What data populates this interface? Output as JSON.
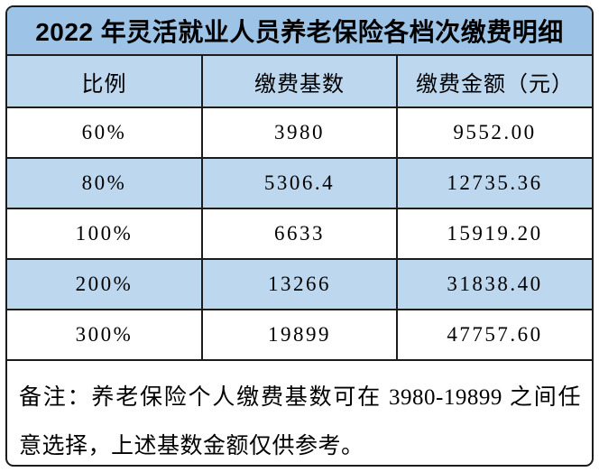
{
  "title": "2022 年灵活就业人员养老保险各档次缴费明细",
  "table": {
    "columns": [
      "比例",
      "缴费基数",
      "缴费金额（元）"
    ],
    "rows": [
      {
        "ratio": "60%",
        "base": "3980",
        "amount": "9552.00"
      },
      {
        "ratio": "80%",
        "base": "5306.4",
        "amount": "12735.36"
      },
      {
        "ratio": "100%",
        "base": "6633",
        "amount": "15919.20"
      },
      {
        "ratio": "200%",
        "base": "13266",
        "amount": "31838.40"
      },
      {
        "ratio": "300%",
        "base": "19899",
        "amount": "47757.60"
      }
    ]
  },
  "note": "备注：养老保险个人缴费基数可在 3980-19899 之间任意选择，上述基数金额仅供参考。",
  "colors": {
    "title_bar": "#9dc3e6",
    "band_row": "#bdd7ee",
    "border": "#1c1c1c",
    "text": "#000000",
    "background": "#ffffff"
  },
  "chart_data": {
    "type": "table",
    "title": "2022 年灵活就业人员养老保险各档次缴费明细",
    "columns": [
      "比例",
      "缴费基数",
      "缴费金额（元）"
    ],
    "rows": [
      [
        "60%",
        3980,
        9552.0
      ],
      [
        "80%",
        5306.4,
        12735.36
      ],
      [
        "100%",
        6633,
        15919.2
      ],
      [
        "200%",
        13266,
        31838.4
      ],
      [
        "300%",
        19899,
        47757.6
      ]
    ],
    "note": "备注：养老保险个人缴费基数可在 3980-19899 之间任意选择，上述基数金额仅供参考。",
    "layout": {
      "banded_rows": [
        1,
        3
      ],
      "header_fill": "#bdd7ee",
      "title_fill": "#9dc3e6"
    }
  }
}
